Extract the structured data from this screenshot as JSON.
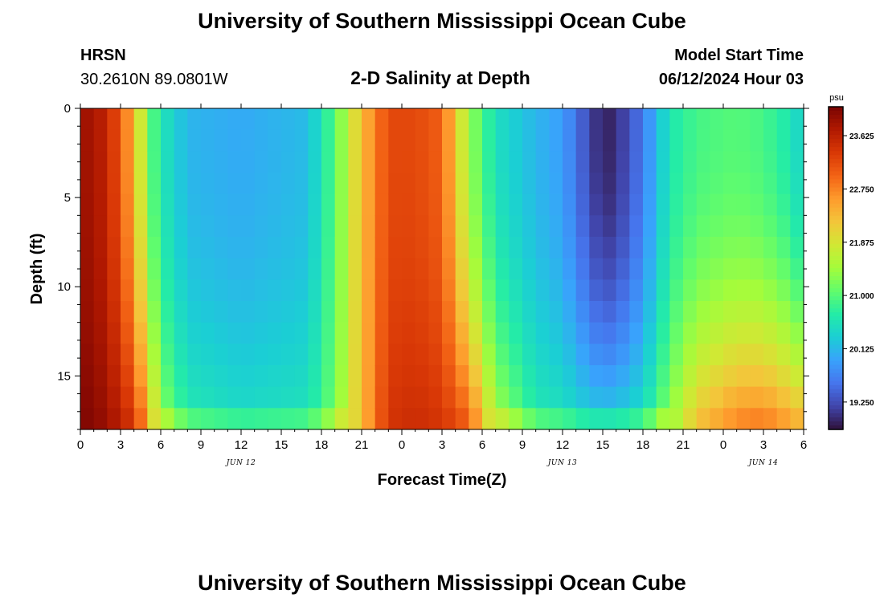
{
  "header": {
    "title": "University of Southern Mississippi Ocean Cube",
    "station": "HRSN",
    "coords": "30.2610N  89.0801W",
    "plot_title": "2-D Salinity at Depth",
    "model_label": "Model Start Time",
    "model_time": "06/12/2024 Hour 03"
  },
  "footer": {
    "title": "University of Southern Mississippi Ocean Cube"
  },
  "colorbar": {
    "unit": "psu",
    "min": 18.8,
    "max": 24.1,
    "ticks": [
      "23.625",
      "22.750",
      "21.875",
      "21.000",
      "20.125",
      "19.250"
    ],
    "tick_values": [
      23.625,
      22.75,
      21.875,
      21.0,
      20.125,
      19.25
    ],
    "palette": [
      "#30123b",
      "#4145ab",
      "#4675ed",
      "#39a2fc",
      "#1bcfd4",
      "#24eca6",
      "#61fc6c",
      "#a4fc3b",
      "#d1e834",
      "#f3c63a",
      "#fe9b2d",
      "#f36315",
      "#d93806",
      "#b11901",
      "#7a0402"
    ]
  },
  "chart_data": {
    "type": "heatmap",
    "title": "2-D Salinity at Depth",
    "xlabel": "Forecast Time(Z)",
    "ylabel": "Depth (ft)",
    "x_range_hours": [
      0,
      54
    ],
    "y_range_ft": [
      0,
      18
    ],
    "x_tick_labels": [
      "0",
      "3",
      "6",
      "9",
      "12",
      "15",
      "18",
      "21",
      "0",
      "3",
      "6",
      "9",
      "12",
      "15",
      "18",
      "21",
      "0",
      "3",
      "6"
    ],
    "y_tick_labels": [
      "0",
      "5",
      "10",
      "15"
    ],
    "y_tick_values": [
      0,
      5,
      10,
      15
    ],
    "date_labels": [
      {
        "text": "JUN 12",
        "hour": 12
      },
      {
        "text": "JUN 13",
        "hour": 36
      },
      {
        "text": "JUN 14",
        "hour": 51
      }
    ],
    "value_unit": "psu",
    "time_step_hours": 1,
    "depth_step_ft": 1.2,
    "salinity_profile": [
      {
        "hour": 0,
        "surface": 23.9,
        "bottom": 24.1
      },
      {
        "hour": 2,
        "surface": 23.6,
        "bottom": 23.9
      },
      {
        "hour": 4,
        "surface": 22.4,
        "bottom": 23.4
      },
      {
        "hour": 5,
        "surface": 21.2,
        "bottom": 22.6
      },
      {
        "hour": 6,
        "surface": 20.6,
        "bottom": 21.4
      },
      {
        "hour": 8,
        "surface": 20.1,
        "bottom": 20.7
      },
      {
        "hour": 12,
        "surface": 20.0,
        "bottom": 20.5
      },
      {
        "hour": 17,
        "surface": 20.15,
        "bottom": 20.6
      },
      {
        "hour": 19,
        "surface": 21.0,
        "bottom": 21.2
      },
      {
        "hour": 21,
        "surface": 22.3,
        "bottom": 22.3
      },
      {
        "hour": 23,
        "surface": 23.2,
        "bottom": 23.4
      },
      {
        "hour": 25,
        "surface": 23.2,
        "bottom": 23.5
      },
      {
        "hour": 27,
        "surface": 23.0,
        "bottom": 23.4
      },
      {
        "hour": 29,
        "surface": 21.4,
        "bottom": 23.1
      },
      {
        "hour": 31,
        "surface": 20.5,
        "bottom": 21.6
      },
      {
        "hour": 34,
        "surface": 20.1,
        "bottom": 20.7
      },
      {
        "hour": 36,
        "surface": 19.9,
        "bottom": 20.6
      },
      {
        "hour": 38,
        "surface": 19.2,
        "bottom": 20.4
      },
      {
        "hour": 39,
        "surface": 18.9,
        "bottom": 20.4
      },
      {
        "hour": 40,
        "surface": 19.0,
        "bottom": 20.4
      },
      {
        "hour": 42,
        "surface": 19.6,
        "bottom": 20.6
      },
      {
        "hour": 44,
        "surface": 20.6,
        "bottom": 21.4
      },
      {
        "hour": 46,
        "surface": 20.9,
        "bottom": 22.3
      },
      {
        "hour": 49,
        "surface": 21.0,
        "bottom": 22.8
      },
      {
        "hour": 51,
        "surface": 20.9,
        "bottom": 22.9
      },
      {
        "hour": 53,
        "surface": 20.6,
        "bottom": 22.6
      },
      {
        "hour": 54,
        "surface": 20.3,
        "bottom": 22.4
      }
    ]
  }
}
